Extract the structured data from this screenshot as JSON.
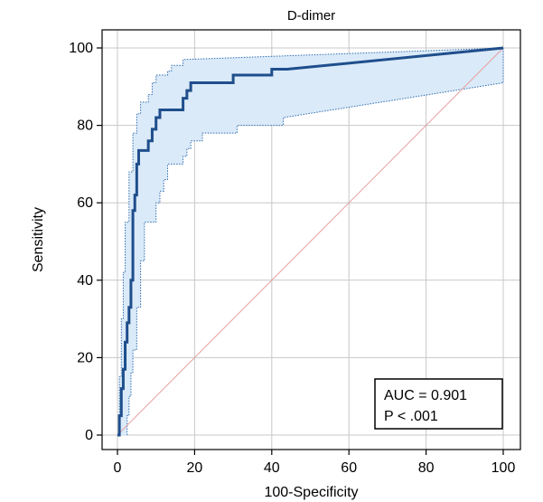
{
  "chart_data": {
    "type": "line",
    "title": "D-dimer",
    "xlabel": "100-Specificity",
    "ylabel": "Sensitivity",
    "xlim": [
      0,
      100
    ],
    "ylim": [
      0,
      100
    ],
    "xticks": [
      0,
      20,
      40,
      60,
      80,
      100
    ],
    "yticks": [
      0,
      20,
      40,
      60,
      80,
      100
    ],
    "grid": true,
    "colors": {
      "roc": "#1f4e8c",
      "ci_fill": "#daeaf8",
      "ci_border": "#2f6cb0",
      "reference": "#e8a0a0",
      "grid": "#c8c8c8"
    },
    "series": [
      {
        "role": "roc",
        "x": [
          0,
          0.5,
          0.5,
          1,
          1,
          1.5,
          1.5,
          2,
          2,
          2.5,
          2.5,
          3,
          3,
          3.5,
          3.5,
          4,
          4,
          4.5,
          4.5,
          5,
          5,
          5.5,
          5.5,
          6,
          6,
          8,
          8,
          9,
          9,
          10,
          10,
          11,
          11,
          17,
          17,
          18,
          18,
          19,
          19,
          30,
          30,
          40,
          40,
          44,
          100
        ],
        "y": [
          0,
          0,
          5,
          5,
          12,
          12,
          17,
          17,
          24,
          24,
          29,
          29,
          33,
          33,
          40,
          40,
          58,
          58,
          62,
          62,
          70,
          70,
          73.5,
          73.5,
          73.5,
          73.5,
          76,
          76,
          79,
          79,
          82,
          82,
          84,
          84,
          87,
          87,
          89,
          89,
          91,
          91,
          93,
          93,
          94.5,
          94.5,
          100
        ]
      },
      {
        "role": "ci-upper",
        "x": [
          0,
          0.5,
          0.5,
          1,
          1,
          1.5,
          1.5,
          2,
          2,
          3,
          3,
          4,
          4,
          5,
          5,
          6,
          6,
          8,
          8,
          9,
          9,
          10,
          10,
          13,
          13,
          14,
          14,
          17,
          17,
          100
        ],
        "y": [
          0,
          0,
          15,
          15,
          30,
          30,
          42,
          42,
          55,
          55,
          68,
          68,
          78,
          78,
          83,
          83,
          86,
          86,
          88,
          88,
          91,
          91,
          93,
          93,
          94,
          94,
          95.5,
          95.5,
          97,
          100
        ]
      },
      {
        "role": "ci-lower",
        "x": [
          2.5,
          2.5,
          3,
          3,
          3.5,
          3.5,
          4,
          4,
          5,
          5,
          6,
          6,
          7,
          7,
          10,
          10,
          11,
          11,
          12,
          12,
          13,
          13,
          17,
          17,
          18,
          18,
          19,
          19,
          22,
          22,
          31,
          31,
          43,
          43,
          100,
          100
        ],
        "y": [
          0,
          5,
          5,
          10,
          10,
          16,
          16,
          22,
          22,
          33,
          33,
          45,
          45,
          55,
          55,
          60,
          60,
          63,
          63,
          66,
          66,
          70,
          70,
          72,
          72,
          74,
          74,
          76,
          76,
          78,
          78,
          80,
          80,
          82,
          91,
          100
        ]
      },
      {
        "role": "reference",
        "x": [
          0,
          100
        ],
        "y": [
          0,
          100
        ]
      }
    ],
    "annotation": {
      "auc_text": "AUC = 0.901",
      "p_text": "P < .001"
    }
  }
}
